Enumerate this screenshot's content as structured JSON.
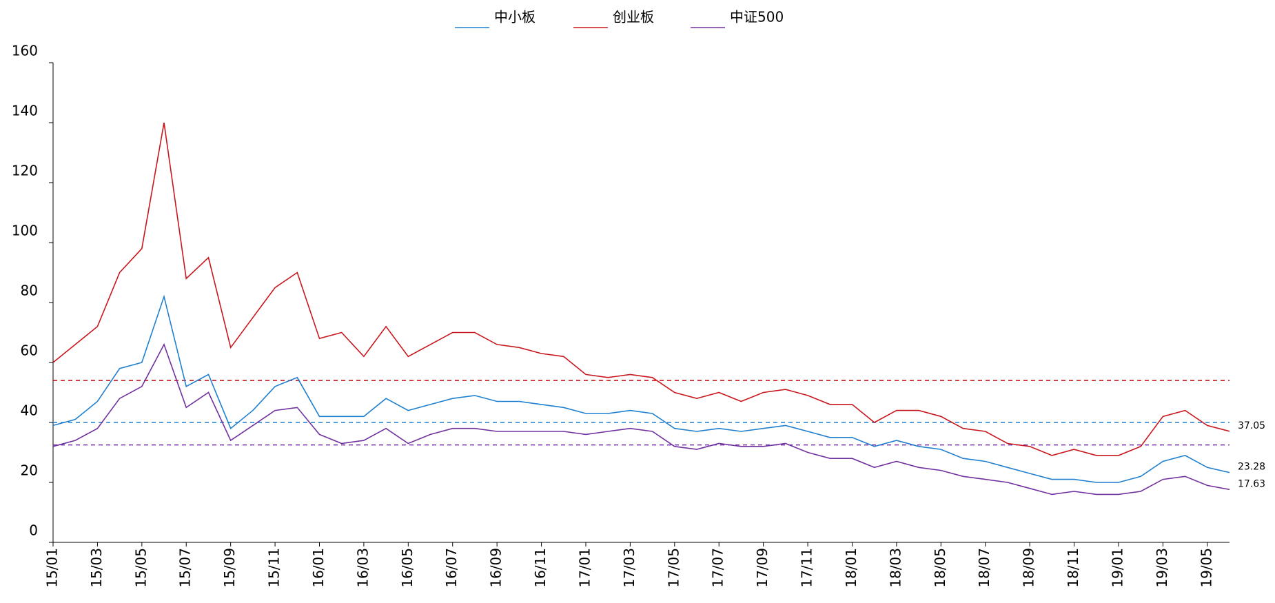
{
  "chart_data": {
    "type": "line",
    "categories": [
      "15/01",
      null,
      "15/03",
      null,
      "15/05",
      null,
      "15/07",
      null,
      "15/09",
      null,
      "15/11",
      null,
      "16/01",
      null,
      "16/03",
      null,
      "16/05",
      null,
      "16/07",
      null,
      "16/09",
      null,
      "16/11",
      null,
      "17/01",
      null,
      "17/03",
      null,
      "17/05",
      null,
      "17/07",
      null,
      "17/09",
      null,
      "17/11",
      null,
      "18/01",
      null,
      "18/03",
      null,
      "18/05",
      null,
      "18/07",
      null,
      "18/09",
      null,
      "18/11",
      null,
      "19/01",
      null,
      "19/03",
      null,
      "19/05",
      null
    ],
    "series": [
      {
        "name": "中小板",
        "color": "#1f7fcf",
        "values": [
          39,
          41,
          47,
          58,
          60,
          82,
          52,
          56,
          38,
          44,
          52,
          55,
          42,
          42,
          42,
          48,
          44,
          46,
          48,
          49,
          47,
          47,
          46,
          45,
          43,
          43,
          44,
          43,
          38,
          37,
          38,
          37,
          38,
          39,
          37,
          35,
          35,
          32,
          34,
          32,
          31,
          28,
          27,
          25,
          23,
          21,
          21,
          20,
          20,
          22,
          27,
          29,
          25,
          23.28
        ]
      },
      {
        "name": "创业板",
        "color": "#c8161d",
        "values": [
          60,
          66,
          72,
          90,
          98,
          140,
          88,
          95,
          65,
          75,
          85,
          90,
          68,
          70,
          62,
          72,
          62,
          66,
          70,
          70,
          66,
          65,
          63,
          62,
          56,
          55,
          56,
          55,
          50,
          48,
          50,
          47,
          50,
          51,
          49,
          46,
          46,
          40,
          44,
          44,
          42,
          38,
          37,
          33,
          32,
          29,
          31,
          29,
          29,
          32,
          42,
          44,
          39,
          37.05
        ]
      },
      {
        "name": "中证500",
        "color": "#7030a0",
        "values": [
          32,
          34,
          38,
          48,
          52,
          66,
          45,
          50,
          34,
          39,
          44,
          45,
          36,
          33,
          34,
          38,
          33,
          36,
          38,
          38,
          37,
          37,
          37,
          37,
          36,
          37,
          38,
          37,
          32,
          31,
          33,
          32,
          32,
          33,
          30,
          28,
          28,
          25,
          27,
          25,
          24,
          22,
          21,
          20,
          18,
          16,
          17,
          16,
          16,
          17,
          21,
          22,
          19,
          17.63
        ]
      }
    ],
    "reference_lines": [
      {
        "value": 54,
        "color": "#c8161d"
      },
      {
        "value": 40,
        "color": "#1f7fcf"
      },
      {
        "value": 32.5,
        "color": "#7030a0"
      }
    ],
    "end_labels": true,
    "ylim": [
      0,
      160
    ],
    "yticks": [
      0,
      20,
      40,
      60,
      80,
      100,
      120,
      140,
      160
    ],
    "legend": "top"
  }
}
